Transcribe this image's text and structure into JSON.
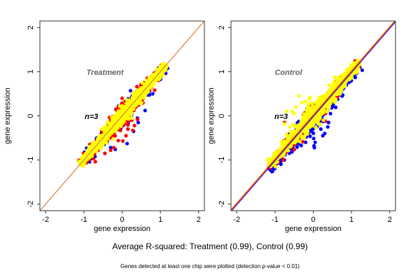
{
  "chart_data": [
    {
      "type": "scatter",
      "title": "Treatment",
      "annotation": "n=3",
      "xlabel": "gene expression",
      "ylabel": "gene expression",
      "xlim": [
        -2.15,
        2.15
      ],
      "ylim": [
        -2.15,
        2.15
      ],
      "xticks": [
        "-2",
        "-1",
        "0",
        "1",
        "2"
      ],
      "yticks": [
        "-2",
        "-1",
        "0",
        "1",
        "2"
      ],
      "grid": false,
      "reference_lines": [
        {
          "name": "identity-line-blue",
          "color": "#0000ff",
          "slope": 1,
          "intercept": 0
        },
        {
          "name": "identity-line-red",
          "color": "#ff0000",
          "slope": 1,
          "intercept": 0
        },
        {
          "name": "identity-line-orange",
          "color": "#e8a040",
          "slope": 1,
          "intercept": 0
        }
      ],
      "series": [
        {
          "name": "blue",
          "color": "#0000ff",
          "cloud": {
            "x_range": [
              -1.1,
              1.15
            ],
            "spread": 0.09
          },
          "outliers": [
            [
              0.4,
              -0.05
            ],
            [
              0.42,
              -0.15
            ],
            [
              0.3,
              -0.35
            ],
            [
              -0.3,
              -0.72
            ],
            [
              -0.18,
              -0.76
            ],
            [
              0.22,
              0.57
            ],
            [
              0.13,
              -0.63
            ],
            [
              -0.4,
              -0.55
            ],
            [
              0.8,
              0.5
            ],
            [
              0.6,
              0.12
            ]
          ]
        },
        {
          "name": "red",
          "color": "#ff0000",
          "cloud": {
            "x_range": [
              -1.1,
              1.15
            ],
            "spread": 0.1
          },
          "outliers": [
            [
              0.32,
              -0.22
            ],
            [
              0.28,
              -0.33
            ],
            [
              -0.1,
              -0.56
            ],
            [
              0.02,
              -0.57
            ],
            [
              -0.3,
              -0.78
            ],
            [
              -0.22,
              -0.72
            ],
            [
              -0.7,
              -1.04
            ],
            [
              0.1,
              -0.45
            ],
            [
              0.25,
              -0.1
            ],
            [
              0.0,
              0.4
            ],
            [
              0.85,
              0.58
            ],
            [
              0.15,
              -0.3
            ],
            [
              -0.45,
              -0.85
            ],
            [
              0.4,
              -0.08
            ]
          ]
        },
        {
          "name": "yellow",
          "color": "#ffff00",
          "cloud": {
            "x_range": [
              -1.1,
              1.15
            ],
            "spread": 0.075
          },
          "outliers": []
        }
      ]
    },
    {
      "type": "scatter",
      "title": "Control",
      "annotation": "n=3",
      "xlabel": "gene expression",
      "ylabel": "gene expression",
      "xlim": [
        -2.15,
        2.15
      ],
      "ylim": [
        -2.15,
        2.15
      ],
      "xticks": [
        "-2",
        "-1",
        "0",
        "1",
        "2"
      ],
      "yticks": [
        "-2",
        "-1",
        "0",
        "1",
        "2"
      ],
      "grid": false,
      "reference_lines": [
        {
          "name": "identity-line-blue",
          "color": "#0000ff",
          "slope": 1,
          "intercept": -0.02
        },
        {
          "name": "identity-line-red",
          "color": "#ff0000",
          "slope": 1,
          "intercept": 0.01
        },
        {
          "name": "identity-line-orange",
          "color": "#ffa500",
          "slope": 1,
          "intercept": 0.03
        }
      ],
      "series": [
        {
          "name": "blue",
          "color": "#0000ff",
          "cloud": {
            "x_range": [
              -1.15,
              1.2
            ],
            "spread": 0.1
          },
          "outliers": [
            [
              0.3,
              -0.4
            ],
            [
              0.4,
              -0.15
            ],
            [
              0.38,
              -0.25
            ],
            [
              0.05,
              -0.6
            ],
            [
              0.03,
              -0.72
            ],
            [
              0.02,
              -0.68
            ],
            [
              -0.2,
              -0.6
            ],
            [
              0.1,
              -0.25
            ],
            [
              0.2,
              -0.3
            ],
            [
              0.45,
              0.05
            ],
            [
              0.5,
              0.35
            ],
            [
              0.7,
              0.5
            ],
            [
              1.15,
              1.05
            ],
            [
              -0.25,
              -0.45
            ],
            [
              0.25,
              -0.45
            ]
          ]
        },
        {
          "name": "red",
          "color": "#ff0000",
          "cloud": {
            "x_range": [
              -1.15,
              1.2
            ],
            "spread": 0.08
          },
          "outliers": [
            [
              0.58,
              0.78
            ],
            [
              0.32,
              0.12
            ],
            [
              0.32,
              -0.12
            ],
            [
              -0.75,
              -0.15
            ],
            [
              1.15,
              1.12
            ],
            [
              -0.78,
              -1.0
            ],
            [
              -0.2,
              0.05
            ]
          ]
        },
        {
          "name": "yellow",
          "color": "#ffff00",
          "cloud": {
            "x_range": [
              -1.15,
              1.2
            ],
            "spread": 0.1
          },
          "outliers": [
            [
              -0.37,
              0.45
            ],
            [
              -0.08,
              0.42
            ],
            [
              -0.1,
              0.38
            ],
            [
              -0.55,
              0.1
            ],
            [
              -0.7,
              0.1
            ],
            [
              -0.75,
              -0.18
            ],
            [
              -0.62,
              -0.25
            ],
            [
              -0.45,
              0.2
            ],
            [
              -0.3,
              0.3
            ],
            [
              -0.2,
              0.32
            ],
            [
              -0.5,
              0.05
            ],
            [
              -0.15,
              0.2
            ]
          ]
        }
      ]
    }
  ],
  "captions": {
    "main": "Average R-squared: Treatment (0.99), Control (0.99)",
    "sub": "Genes detected at least one chip were plotted (detection p-value < 0.01)"
  }
}
